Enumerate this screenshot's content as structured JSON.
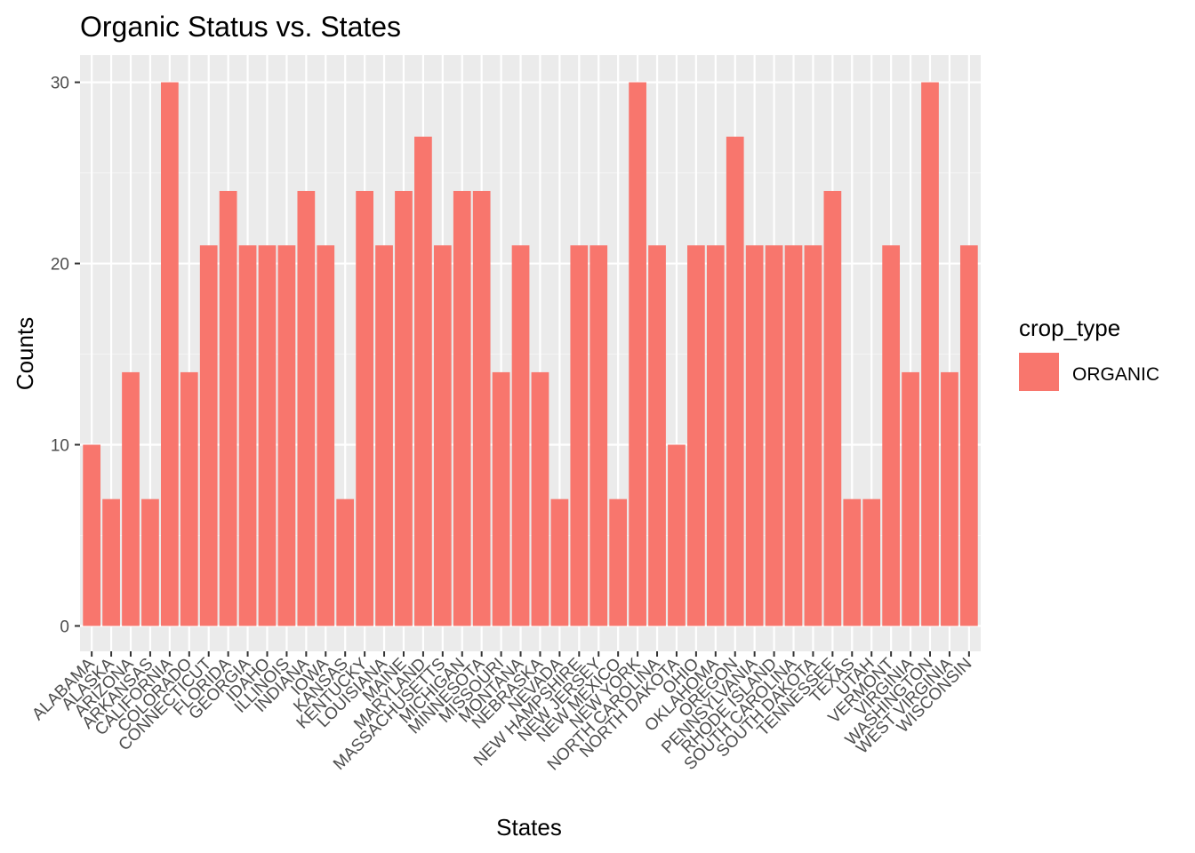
{
  "chart_data": {
    "type": "bar",
    "title": "Organic Status vs. States",
    "xlabel": "States",
    "ylabel": "Counts",
    "ylim": [
      -1.4,
      31.5
    ],
    "yticks": [
      0,
      10,
      20,
      30
    ],
    "grid": true,
    "legend_position": "right",
    "legend": {
      "title": "crop_type",
      "entries": [
        "ORGANIC"
      ]
    },
    "colors": {
      "bar": "#F8766D",
      "panel": "#EBEBEB",
      "grid_major": "#FFFFFF",
      "grid_minor": "#F5F5F5",
      "tick_text": "#4D4D4D",
      "tick_mark": "#333333"
    },
    "categories": [
      "ALABAMA",
      "ALASKA",
      "ARIZONA",
      "ARKANSAS",
      "CALIFORNIA",
      "COLORADO",
      "CONNECTICUT",
      "FLORIDA",
      "GEORGIA",
      "IDAHO",
      "ILLINOIS",
      "INDIANA",
      "IOWA",
      "KANSAS",
      "KENTUCKY",
      "LOUISIANA",
      "MAINE",
      "MARYLAND",
      "MASSACHUSETTS",
      "MICHIGAN",
      "MINNESOTA",
      "MISSOURI",
      "MONTANA",
      "NEBRASKA",
      "NEVADA",
      "NEW HAMPSHIRE",
      "NEW JERSEY",
      "NEW MEXICO",
      "NEW YORK",
      "NORTH CAROLINA",
      "NORTH DAKOTA",
      "OHIO",
      "OKLAHOMA",
      "OREGON",
      "PENNSYLVANIA",
      "RHODE ISLAND",
      "SOUTH CAROLINA",
      "SOUTH DAKOTA",
      "TENNESSEE",
      "TEXAS",
      "UTAH",
      "VERMONT",
      "VIRGINIA",
      "WASHINGTON",
      "WEST VIRGINIA",
      "WISCONSIN"
    ],
    "series": [
      {
        "name": "ORGANIC",
        "values": [
          10,
          7,
          14,
          7,
          30,
          14,
          21,
          24,
          21,
          21,
          21,
          24,
          21,
          7,
          24,
          21,
          24,
          27,
          21,
          24,
          24,
          14,
          21,
          14,
          7,
          21,
          21,
          7,
          30,
          21,
          10,
          21,
          21,
          27,
          21,
          21,
          21,
          21,
          24,
          7,
          7,
          21,
          14,
          30,
          14,
          21
        ]
      }
    ]
  }
}
